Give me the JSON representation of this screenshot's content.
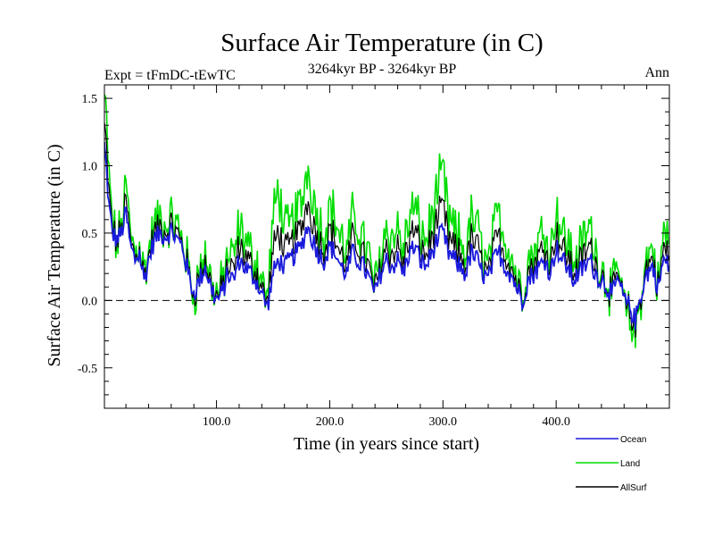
{
  "chart_data": {
    "type": "line",
    "title": "Surface Air Temperature (in C)",
    "subtitle": "3264kyr BP - 3264kyr BP",
    "left_note": "Expt = tFmDC-tEwTC",
    "right_note": "Ann",
    "xlabel": "Time (in years since start)",
    "ylabel": "Surface Air Temperature (in C)",
    "xlim": [
      1,
      500
    ],
    "ylim": [
      -0.8,
      1.6
    ],
    "x_ticks": [
      100,
      200,
      300,
      400
    ],
    "x_tick_labels": [
      "100.0",
      "200.0",
      "300.0",
      "400.0"
    ],
    "y_ticks": [
      -0.5,
      0.0,
      0.5,
      1.0,
      1.5
    ],
    "y_tick_labels": [
      "-0.5",
      "0.0",
      "0.5",
      "1.0",
      "1.5"
    ],
    "zero_line": 0.0,
    "legend_position": "bottom-right",
    "series_colors": {
      "Ocean": "#1a1adc",
      "Land": "#00dd00",
      "AllSurf": "#000000"
    },
    "series_names": [
      "Ocean",
      "Land",
      "AllSurf"
    ],
    "keypoints": {
      "x": [
        1,
        3,
        5,
        8,
        12,
        16,
        20,
        24,
        28,
        32,
        36,
        40,
        45,
        50,
        55,
        60,
        65,
        70,
        75,
        80,
        85,
        90,
        95,
        100,
        105,
        110,
        115,
        120,
        125,
        130,
        135,
        140,
        145,
        150,
        155,
        160,
        165,
        170,
        175,
        180,
        185,
        190,
        195,
        200,
        205,
        210,
        215,
        220,
        225,
        230,
        235,
        240,
        245,
        250,
        255,
        260,
        265,
        270,
        275,
        280,
        285,
        290,
        295,
        300,
        305,
        310,
        315,
        320,
        325,
        330,
        335,
        340,
        345,
        350,
        355,
        360,
        365,
        370,
        375,
        380,
        385,
        390,
        395,
        400,
        405,
        410,
        415,
        420,
        425,
        430,
        435,
        440,
        445,
        450,
        455,
        460,
        465,
        470,
        475,
        480,
        485,
        490,
        495,
        500
      ],
      "ocean": [
        1.15,
        0.95,
        0.7,
        0.5,
        0.45,
        0.5,
        0.65,
        0.4,
        0.3,
        0.35,
        0.15,
        0.3,
        0.45,
        0.5,
        0.48,
        0.52,
        0.45,
        0.4,
        0.2,
        0.05,
        0.15,
        0.25,
        0.1,
        0.0,
        0.05,
        0.2,
        0.15,
        0.3,
        0.25,
        0.2,
        0.15,
        0.05,
        -0.05,
        0.2,
        0.3,
        0.25,
        0.3,
        0.35,
        0.4,
        0.55,
        0.45,
        0.35,
        0.3,
        0.4,
        0.35,
        0.25,
        0.2,
        0.35,
        0.3,
        0.25,
        0.15,
        0.05,
        0.2,
        0.3,
        0.25,
        0.3,
        0.2,
        0.35,
        0.4,
        0.3,
        0.25,
        0.35,
        0.45,
        0.5,
        0.35,
        0.3,
        0.25,
        0.2,
        0.35,
        0.3,
        0.2,
        0.15,
        0.3,
        0.35,
        0.25,
        0.2,
        0.1,
        0.0,
        0.15,
        0.2,
        0.25,
        0.3,
        0.2,
        0.4,
        0.3,
        0.25,
        0.15,
        0.2,
        0.25,
        0.3,
        0.2,
        0.15,
        0.1,
        0.05,
        0.15,
        0.0,
        -0.05,
        -0.15,
        0.05,
        0.2,
        0.25,
        0.1,
        0.3,
        0.25
      ],
      "land": [
        1.5,
        1.3,
        0.9,
        0.6,
        0.4,
        0.55,
        0.85,
        0.5,
        0.35,
        0.45,
        0.2,
        0.35,
        0.55,
        0.6,
        0.55,
        0.6,
        0.55,
        0.45,
        0.25,
        0.05,
        0.2,
        0.35,
        0.15,
        0.05,
        0.1,
        0.35,
        0.3,
        0.55,
        0.45,
        0.35,
        0.3,
        0.15,
        0.0,
        0.6,
        0.85,
        0.5,
        0.55,
        0.65,
        0.7,
        1.0,
        0.8,
        0.6,
        0.5,
        0.7,
        0.6,
        0.45,
        0.35,
        0.6,
        0.55,
        0.45,
        0.3,
        0.1,
        0.35,
        0.55,
        0.45,
        0.55,
        0.35,
        0.6,
        0.7,
        0.5,
        0.45,
        0.6,
        0.8,
        0.95,
        0.6,
        0.5,
        0.45,
        0.35,
        0.6,
        0.55,
        0.35,
        0.25,
        0.5,
        0.65,
        0.45,
        0.35,
        0.2,
        0.05,
        0.3,
        0.35,
        0.45,
        0.55,
        0.35,
        0.7,
        0.5,
        0.45,
        0.3,
        0.35,
        0.45,
        0.55,
        0.35,
        0.25,
        0.15,
        0.05,
        0.25,
        -0.05,
        -0.15,
        -0.25,
        0.05,
        0.3,
        0.4,
        0.1,
        0.5,
        0.45
      ],
      "allsurf": [
        1.2,
        1.0,
        0.75,
        0.52,
        0.44,
        0.51,
        0.7,
        0.43,
        0.31,
        0.38,
        0.16,
        0.31,
        0.48,
        0.52,
        0.5,
        0.55,
        0.48,
        0.41,
        0.21,
        0.04,
        0.16,
        0.28,
        0.12,
        0.02,
        0.06,
        0.25,
        0.19,
        0.38,
        0.32,
        0.25,
        0.2,
        0.08,
        -0.03,
        0.32,
        0.45,
        0.33,
        0.38,
        0.45,
        0.5,
        0.7,
        0.58,
        0.44,
        0.37,
        0.5,
        0.44,
        0.31,
        0.25,
        0.44,
        0.39,
        0.32,
        0.2,
        0.07,
        0.25,
        0.39,
        0.32,
        0.38,
        0.25,
        0.44,
        0.5,
        0.37,
        0.32,
        0.44,
        0.57,
        0.65,
        0.44,
        0.37,
        0.32,
        0.25,
        0.44,
        0.39,
        0.25,
        0.18,
        0.37,
        0.45,
        0.32,
        0.25,
        0.13,
        0.01,
        0.2,
        0.25,
        0.32,
        0.39,
        0.25,
        0.51,
        0.37,
        0.32,
        0.2,
        0.25,
        0.32,
        0.39,
        0.25,
        0.18,
        0.12,
        0.05,
        0.18,
        -0.01,
        -0.08,
        -0.18,
        0.05,
        0.24,
        0.3,
        0.1,
        0.37,
        0.32
      ]
    }
  }
}
